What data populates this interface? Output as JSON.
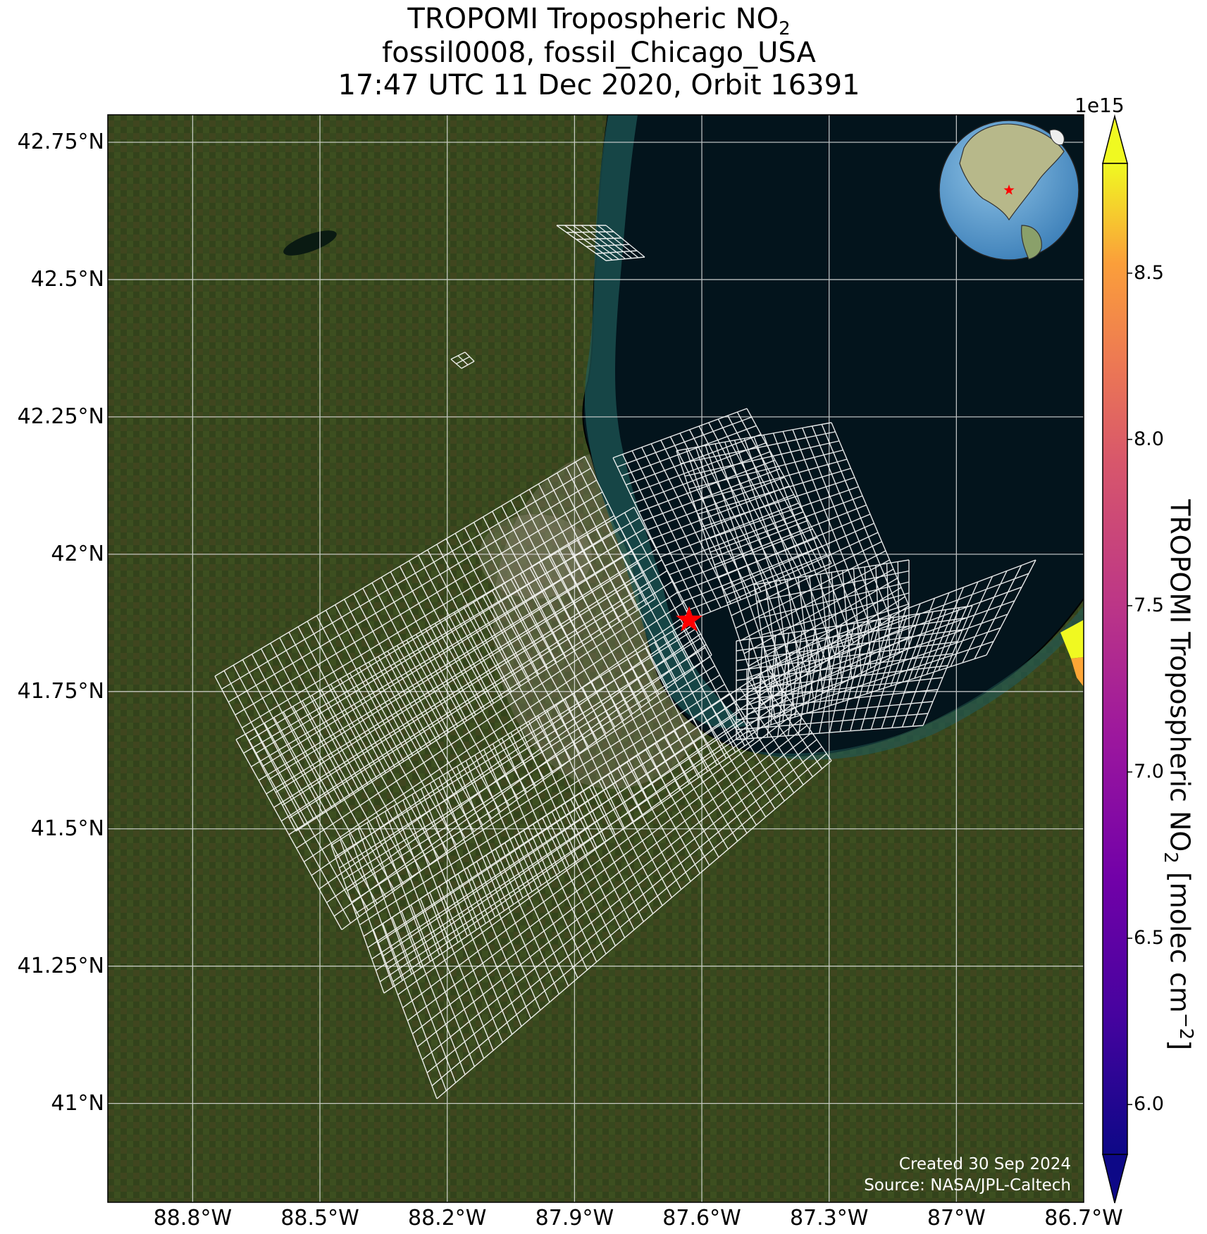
{
  "title": {
    "line1_prefix": "TROPOMI Tropospheric NO",
    "line1_sub": "2",
    "line2": "fossil0008, fossil_Chicago_USA",
    "line3": "17:47 UTC 11 Dec 2020, Orbit 16391"
  },
  "map": {
    "lon_range": [
      -89.0,
      -86.7
    ],
    "lat_range": [
      40.82,
      42.8
    ],
    "lat_ticks": [
      {
        "value": 42.75,
        "label": "42.75°N"
      },
      {
        "value": 42.5,
        "label": "42.5°N"
      },
      {
        "value": 42.25,
        "label": "42.25°N"
      },
      {
        "value": 42.0,
        "label": "42°N"
      },
      {
        "value": 41.75,
        "label": "41.75°N"
      },
      {
        "value": 41.5,
        "label": "41.5°N"
      },
      {
        "value": 41.25,
        "label": "41.25°N"
      },
      {
        "value": 41.0,
        "label": "41°N"
      }
    ],
    "lon_ticks": [
      {
        "value": -88.8,
        "label": "88.8°W"
      },
      {
        "value": -88.5,
        "label": "88.5°W"
      },
      {
        "value": -88.2,
        "label": "88.2°W"
      },
      {
        "value": -87.9,
        "label": "87.9°W"
      },
      {
        "value": -87.6,
        "label": "87.6°W"
      },
      {
        "value": -87.3,
        "label": "87.3°W"
      },
      {
        "value": -87.0,
        "label": "87°W"
      },
      {
        "value": -86.7,
        "label": "86.7°W"
      }
    ],
    "target_site": {
      "name": "fossil_Chicago_USA",
      "lon": -87.63,
      "lat": 41.88,
      "marker_color": "#ff0000"
    },
    "land_color": "#3b4a22",
    "lake_color": "#03141c",
    "credit_line1": "Created 30 Sep 2024",
    "credit_line2": "Source: NASA/JPL-Caltech"
  },
  "colorbar": {
    "label_prefix": "TROPOMI Tropospheric NO",
    "label_sub": "2",
    "label_suffix": " [molec cm",
    "label_sup": "−2",
    "label_end": "]",
    "exponent_label": "1e15",
    "colormap": "plasma",
    "range": [
      5.85,
      8.83
    ],
    "extend": "both",
    "ticks": [
      {
        "value": 6.0,
        "label": "6.0"
      },
      {
        "value": 6.5,
        "label": "6.5"
      },
      {
        "value": 7.0,
        "label": "7.0"
      },
      {
        "value": 7.5,
        "label": "7.5"
      },
      {
        "value": 8.0,
        "label": "8.0"
      },
      {
        "value": 8.5,
        "label": "8.5"
      }
    ]
  },
  "inset_globe": {
    "description_icon": "globe-north-america-icon",
    "marker_color": "#ff0000"
  }
}
